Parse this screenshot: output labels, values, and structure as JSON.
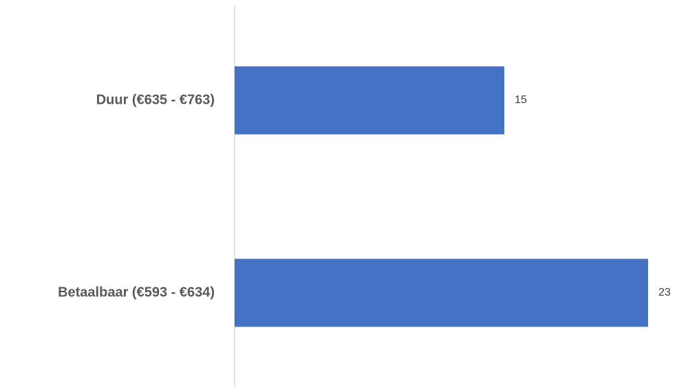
{
  "chart_data": {
    "type": "barh",
    "categories": [
      "Duur (€635 - €763)",
      "Betaalbaar (€593 - €634)"
    ],
    "values": [
      15,
      23
    ],
    "color": "#4472c4"
  }
}
